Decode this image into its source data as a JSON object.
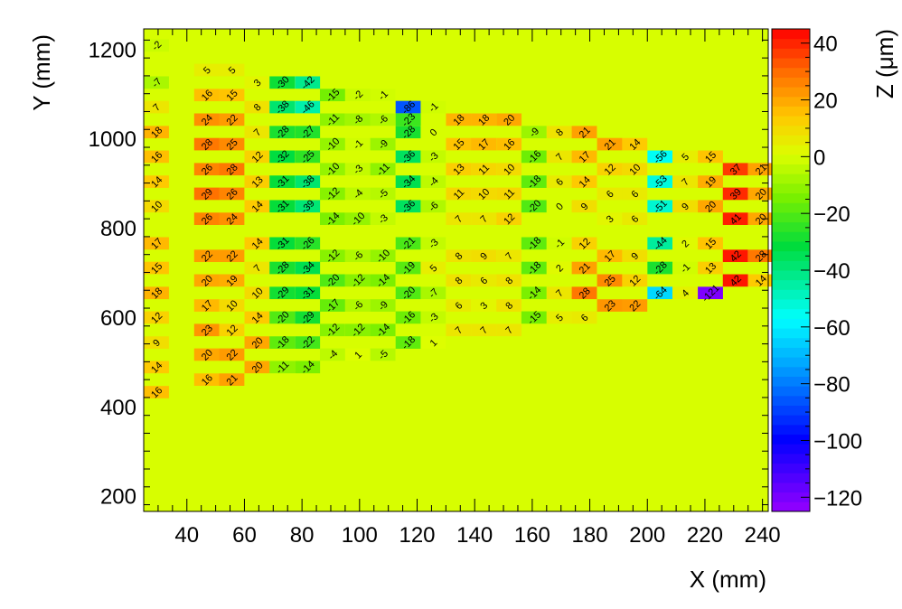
{
  "chart_data": {
    "type": "heatmap",
    "xlabel": "X (mm)",
    "ylabel": "Y (mm)",
    "zlabel": "Z (μm)",
    "xlim": [
      25,
      242
    ],
    "ylim": [
      165,
      1245
    ],
    "zlim": [
      -125,
      45
    ],
    "x_ticks": [
      40,
      60,
      80,
      100,
      120,
      140,
      160,
      180,
      200,
      220,
      240
    ],
    "y_ticks": [
      200,
      400,
      600,
      800,
      1000,
      1200
    ],
    "z_ticks": [
      40,
      20,
      0,
      -20,
      -40,
      -60,
      -80,
      -100,
      -120
    ],
    "bin_width_x": 8.75,
    "bin_height_y": 27.7,
    "background_z": 0,
    "cells": [
      {
        "x": 29.4,
        "y": 1208,
        "z": -2
      },
      {
        "x": 46.9,
        "y": 1153,
        "z": 5
      },
      {
        "x": 55.6,
        "y": 1153,
        "z": 5
      },
      {
        "x": 29.4,
        "y": 1125,
        "z": -7
      },
      {
        "x": 64.4,
        "y": 1125,
        "z": 3
      },
      {
        "x": 73.1,
        "y": 1125,
        "z": -30
      },
      {
        "x": 81.9,
        "y": 1125,
        "z": -42
      },
      {
        "x": 46.9,
        "y": 1097,
        "z": 16
      },
      {
        "x": 55.6,
        "y": 1097,
        "z": 15
      },
      {
        "x": 90.6,
        "y": 1097,
        "z": -15
      },
      {
        "x": 99.4,
        "y": 1097,
        "z": -2
      },
      {
        "x": 108.1,
        "y": 1097,
        "z": -1
      },
      {
        "x": 29.4,
        "y": 1070,
        "z": 7
      },
      {
        "x": 64.4,
        "y": 1070,
        "z": 8
      },
      {
        "x": 73.1,
        "y": 1070,
        "z": -38
      },
      {
        "x": 81.9,
        "y": 1070,
        "z": -46
      },
      {
        "x": 116.9,
        "y": 1070,
        "z": -86
      },
      {
        "x": 125.6,
        "y": 1070,
        "z": -1
      },
      {
        "x": 46.9,
        "y": 1042,
        "z": 24
      },
      {
        "x": 55.6,
        "y": 1042,
        "z": 22
      },
      {
        "x": 90.6,
        "y": 1042,
        "z": -11
      },
      {
        "x": 99.4,
        "y": 1042,
        "z": -8
      },
      {
        "x": 108.1,
        "y": 1042,
        "z": -6
      },
      {
        "x": 116.9,
        "y": 1042,
        "z": -23
      },
      {
        "x": 134.4,
        "y": 1042,
        "z": 18
      },
      {
        "x": 143.1,
        "y": 1042,
        "z": 18
      },
      {
        "x": 151.9,
        "y": 1042,
        "z": 20
      },
      {
        "x": 29.4,
        "y": 1014,
        "z": 18
      },
      {
        "x": 64.4,
        "y": 1014,
        "z": 7
      },
      {
        "x": 73.1,
        "y": 1014,
        "z": -28
      },
      {
        "x": 81.9,
        "y": 1014,
        "z": -27
      },
      {
        "x": 116.9,
        "y": 1014,
        "z": -28
      },
      {
        "x": 125.6,
        "y": 1014,
        "z": 0
      },
      {
        "x": 160.6,
        "y": 1014,
        "z": -9
      },
      {
        "x": 169.4,
        "y": 1014,
        "z": 8
      },
      {
        "x": 178.1,
        "y": 1014,
        "z": 21
      },
      {
        "x": 46.9,
        "y": 987,
        "z": 28
      },
      {
        "x": 55.6,
        "y": 987,
        "z": 25
      },
      {
        "x": 90.6,
        "y": 987,
        "z": -10
      },
      {
        "x": 99.4,
        "y": 987,
        "z": -1
      },
      {
        "x": 108.1,
        "y": 987,
        "z": -9
      },
      {
        "x": 134.4,
        "y": 987,
        "z": 15
      },
      {
        "x": 143.1,
        "y": 987,
        "z": 17
      },
      {
        "x": 151.9,
        "y": 987,
        "z": 16
      },
      {
        "x": 186.9,
        "y": 987,
        "z": 21
      },
      {
        "x": 195.6,
        "y": 987,
        "z": 14
      },
      {
        "x": 29.4,
        "y": 959,
        "z": 16
      },
      {
        "x": 64.4,
        "y": 959,
        "z": 12
      },
      {
        "x": 73.1,
        "y": 959,
        "z": -32
      },
      {
        "x": 81.9,
        "y": 959,
        "z": -25
      },
      {
        "x": 116.9,
        "y": 959,
        "z": -36
      },
      {
        "x": 125.6,
        "y": 959,
        "z": -3
      },
      {
        "x": 160.6,
        "y": 959,
        "z": -16
      },
      {
        "x": 169.4,
        "y": 959,
        "z": 7
      },
      {
        "x": 178.1,
        "y": 959,
        "z": 17
      },
      {
        "x": 204.4,
        "y": 959,
        "z": -56
      },
      {
        "x": 213.1,
        "y": 959,
        "z": 5
      },
      {
        "x": 221.9,
        "y": 959,
        "z": 15
      },
      {
        "x": 46.9,
        "y": 931,
        "z": 26
      },
      {
        "x": 55.6,
        "y": 931,
        "z": 28
      },
      {
        "x": 90.6,
        "y": 931,
        "z": -10
      },
      {
        "x": 99.4,
        "y": 931,
        "z": -3
      },
      {
        "x": 108.1,
        "y": 931,
        "z": -11
      },
      {
        "x": 134.4,
        "y": 931,
        "z": 13
      },
      {
        "x": 143.1,
        "y": 931,
        "z": 11
      },
      {
        "x": 151.9,
        "y": 931,
        "z": 10
      },
      {
        "x": 186.9,
        "y": 931,
        "z": 12
      },
      {
        "x": 195.6,
        "y": 931,
        "z": 10
      },
      {
        "x": 230.6,
        "y": 931,
        "z": 37
      },
      {
        "x": 239.4,
        "y": 931,
        "z": 21
      },
      {
        "x": 29.4,
        "y": 903,
        "z": 14
      },
      {
        "x": 64.4,
        "y": 903,
        "z": 13
      },
      {
        "x": 73.1,
        "y": 903,
        "z": -31
      },
      {
        "x": 81.9,
        "y": 903,
        "z": -38
      },
      {
        "x": 116.9,
        "y": 903,
        "z": -34
      },
      {
        "x": 125.6,
        "y": 903,
        "z": -4
      },
      {
        "x": 160.6,
        "y": 903,
        "z": -18
      },
      {
        "x": 169.4,
        "y": 903,
        "z": 6
      },
      {
        "x": 178.1,
        "y": 903,
        "z": 14
      },
      {
        "x": 204.4,
        "y": 903,
        "z": -53
      },
      {
        "x": 213.1,
        "y": 903,
        "z": 7
      },
      {
        "x": 221.9,
        "y": 903,
        "z": 19
      },
      {
        "x": 46.9,
        "y": 876,
        "z": 29
      },
      {
        "x": 55.6,
        "y": 876,
        "z": 26
      },
      {
        "x": 90.6,
        "y": 876,
        "z": -12
      },
      {
        "x": 99.4,
        "y": 876,
        "z": -4
      },
      {
        "x": 108.1,
        "y": 876,
        "z": -5
      },
      {
        "x": 134.4,
        "y": 876,
        "z": 11
      },
      {
        "x": 143.1,
        "y": 876,
        "z": 10
      },
      {
        "x": 151.9,
        "y": 876,
        "z": 11
      },
      {
        "x": 186.9,
        "y": 876,
        "z": 6
      },
      {
        "x": 195.6,
        "y": 876,
        "z": 6
      },
      {
        "x": 230.6,
        "y": 876,
        "z": 39
      },
      {
        "x": 239.4,
        "y": 876,
        "z": 20
      },
      {
        "x": 29.4,
        "y": 848,
        "z": 10
      },
      {
        "x": 64.4,
        "y": 848,
        "z": 14
      },
      {
        "x": 73.1,
        "y": 848,
        "z": -31
      },
      {
        "x": 81.9,
        "y": 848,
        "z": -39
      },
      {
        "x": 116.9,
        "y": 848,
        "z": -36
      },
      {
        "x": 125.6,
        "y": 848,
        "z": -6
      },
      {
        "x": 160.6,
        "y": 848,
        "z": -20
      },
      {
        "x": 169.4,
        "y": 848,
        "z": 0
      },
      {
        "x": 178.1,
        "y": 848,
        "z": 9
      },
      {
        "x": 204.4,
        "y": 848,
        "z": -51
      },
      {
        "x": 213.1,
        "y": 848,
        "z": 9
      },
      {
        "x": 221.9,
        "y": 848,
        "z": 20
      },
      {
        "x": 46.9,
        "y": 820,
        "z": 26
      },
      {
        "x": 55.6,
        "y": 820,
        "z": 24
      },
      {
        "x": 90.6,
        "y": 820,
        "z": -14
      },
      {
        "x": 99.4,
        "y": 820,
        "z": -10
      },
      {
        "x": 108.1,
        "y": 820,
        "z": -3
      },
      {
        "x": 134.4,
        "y": 820,
        "z": 7
      },
      {
        "x": 143.1,
        "y": 820,
        "z": 7
      },
      {
        "x": 151.9,
        "y": 820,
        "z": 12
      },
      {
        "x": 186.9,
        "y": 820,
        "z": 3
      },
      {
        "x": 195.6,
        "y": 820,
        "z": 6
      },
      {
        "x": 230.6,
        "y": 820,
        "z": 41
      },
      {
        "x": 239.4,
        "y": 820,
        "z": 20
      },
      {
        "x": 29.4,
        "y": 765,
        "z": 17
      },
      {
        "x": 64.4,
        "y": 765,
        "z": 14
      },
      {
        "x": 73.1,
        "y": 765,
        "z": -31
      },
      {
        "x": 81.9,
        "y": 765,
        "z": -26
      },
      {
        "x": 116.9,
        "y": 765,
        "z": -21
      },
      {
        "x": 125.6,
        "y": 765,
        "z": -3
      },
      {
        "x": 160.6,
        "y": 765,
        "z": -18
      },
      {
        "x": 169.4,
        "y": 765,
        "z": -1
      },
      {
        "x": 178.1,
        "y": 765,
        "z": 12
      },
      {
        "x": 204.4,
        "y": 765,
        "z": -44
      },
      {
        "x": 213.1,
        "y": 765,
        "z": 2
      },
      {
        "x": 221.9,
        "y": 765,
        "z": 15
      },
      {
        "x": 46.9,
        "y": 737,
        "z": 22
      },
      {
        "x": 55.6,
        "y": 737,
        "z": 22
      },
      {
        "x": 90.6,
        "y": 737,
        "z": -12
      },
      {
        "x": 99.4,
        "y": 737,
        "z": -6
      },
      {
        "x": 108.1,
        "y": 737,
        "z": -10
      },
      {
        "x": 134.4,
        "y": 737,
        "z": 8
      },
      {
        "x": 143.1,
        "y": 737,
        "z": 9
      },
      {
        "x": 151.9,
        "y": 737,
        "z": 7
      },
      {
        "x": 186.9,
        "y": 737,
        "z": 17
      },
      {
        "x": 195.6,
        "y": 737,
        "z": 9
      },
      {
        "x": 230.6,
        "y": 737,
        "z": 42
      },
      {
        "x": 239.4,
        "y": 737,
        "z": 28
      },
      {
        "x": 29.4,
        "y": 710,
        "z": 15
      },
      {
        "x": 64.4,
        "y": 710,
        "z": 7
      },
      {
        "x": 73.1,
        "y": 710,
        "z": -28
      },
      {
        "x": 81.9,
        "y": 710,
        "z": -34
      },
      {
        "x": 116.9,
        "y": 710,
        "z": -19
      },
      {
        "x": 125.6,
        "y": 710,
        "z": 5
      },
      {
        "x": 160.6,
        "y": 710,
        "z": -18
      },
      {
        "x": 169.4,
        "y": 710,
        "z": 2
      },
      {
        "x": 178.1,
        "y": 710,
        "z": 21
      },
      {
        "x": 204.4,
        "y": 710,
        "z": -28
      },
      {
        "x": 213.1,
        "y": 710,
        "z": -1
      },
      {
        "x": 221.9,
        "y": 710,
        "z": 13
      },
      {
        "x": 46.9,
        "y": 682,
        "z": 20
      },
      {
        "x": 55.6,
        "y": 682,
        "z": 19
      },
      {
        "x": 90.6,
        "y": 682,
        "z": -20
      },
      {
        "x": 99.4,
        "y": 682,
        "z": -12
      },
      {
        "x": 108.1,
        "y": 682,
        "z": -14
      },
      {
        "x": 134.4,
        "y": 682,
        "z": 8
      },
      {
        "x": 143.1,
        "y": 682,
        "z": 6
      },
      {
        "x": 151.9,
        "y": 682,
        "z": 8
      },
      {
        "x": 186.9,
        "y": 682,
        "z": 25
      },
      {
        "x": 195.6,
        "y": 682,
        "z": 12
      },
      {
        "x": 230.6,
        "y": 682,
        "z": 42
      },
      {
        "x": 239.4,
        "y": 682,
        "z": 14
      },
      {
        "x": 29.4,
        "y": 654,
        "z": 18
      },
      {
        "x": 64.4,
        "y": 654,
        "z": 10
      },
      {
        "x": 73.1,
        "y": 654,
        "z": -29
      },
      {
        "x": 81.9,
        "y": 654,
        "z": -31
      },
      {
        "x": 116.9,
        "y": 654,
        "z": -20
      },
      {
        "x": 125.6,
        "y": 654,
        "z": -7
      },
      {
        "x": 160.6,
        "y": 654,
        "z": -14
      },
      {
        "x": 169.4,
        "y": 654,
        "z": 7
      },
      {
        "x": 178.1,
        "y": 654,
        "z": 28
      },
      {
        "x": 204.4,
        "y": 654,
        "z": -64
      },
      {
        "x": 213.1,
        "y": 654,
        "z": 4
      },
      {
        "x": 221.9,
        "y": 654,
        "z": -121
      },
      {
        "x": 46.9,
        "y": 626,
        "z": 17
      },
      {
        "x": 55.6,
        "y": 626,
        "z": 10
      },
      {
        "x": 90.6,
        "y": 626,
        "z": -17
      },
      {
        "x": 99.4,
        "y": 626,
        "z": -6
      },
      {
        "x": 108.1,
        "y": 626,
        "z": -9
      },
      {
        "x": 134.4,
        "y": 626,
        "z": 6
      },
      {
        "x": 143.1,
        "y": 626,
        "z": 3
      },
      {
        "x": 151.9,
        "y": 626,
        "z": 8
      },
      {
        "x": 186.9,
        "y": 626,
        "z": 23
      },
      {
        "x": 195.6,
        "y": 626,
        "z": 22
      },
      {
        "x": 29.4,
        "y": 599,
        "z": 12
      },
      {
        "x": 64.4,
        "y": 599,
        "z": 14
      },
      {
        "x": 73.1,
        "y": 599,
        "z": -20
      },
      {
        "x": 81.9,
        "y": 599,
        "z": -29
      },
      {
        "x": 116.9,
        "y": 599,
        "z": -16
      },
      {
        "x": 125.6,
        "y": 599,
        "z": -3
      },
      {
        "x": 160.6,
        "y": 599,
        "z": -15
      },
      {
        "x": 169.4,
        "y": 599,
        "z": 5
      },
      {
        "x": 178.1,
        "y": 599,
        "z": 6
      },
      {
        "x": 46.9,
        "y": 571,
        "z": 23
      },
      {
        "x": 55.6,
        "y": 571,
        "z": 12
      },
      {
        "x": 90.6,
        "y": 571,
        "z": -12
      },
      {
        "x": 99.4,
        "y": 571,
        "z": -12
      },
      {
        "x": 108.1,
        "y": 571,
        "z": -14
      },
      {
        "x": 134.4,
        "y": 571,
        "z": 7
      },
      {
        "x": 143.1,
        "y": 571,
        "z": 7
      },
      {
        "x": 151.9,
        "y": 571,
        "z": 7
      },
      {
        "x": 29.4,
        "y": 543,
        "z": 9
      },
      {
        "x": 64.4,
        "y": 543,
        "z": 20
      },
      {
        "x": 73.1,
        "y": 543,
        "z": -18
      },
      {
        "x": 81.9,
        "y": 543,
        "z": -22
      },
      {
        "x": 116.9,
        "y": 543,
        "z": -18
      },
      {
        "x": 125.6,
        "y": 543,
        "z": 1
      },
      {
        "x": 46.9,
        "y": 516,
        "z": 20
      },
      {
        "x": 55.6,
        "y": 516,
        "z": 22
      },
      {
        "x": 90.6,
        "y": 516,
        "z": -4
      },
      {
        "x": 99.4,
        "y": 516,
        "z": 1
      },
      {
        "x": 108.1,
        "y": 516,
        "z": -5
      },
      {
        "x": 29.4,
        "y": 488,
        "z": 14
      },
      {
        "x": 64.4,
        "y": 488,
        "z": 20
      },
      {
        "x": 73.1,
        "y": 488,
        "z": -11
      },
      {
        "x": 81.9,
        "y": 488,
        "z": -14
      },
      {
        "x": 46.9,
        "y": 460,
        "z": 16
      },
      {
        "x": 55.6,
        "y": 460,
        "z": 21
      },
      {
        "x": 29.4,
        "y": 432,
        "z": 16
      }
    ]
  }
}
